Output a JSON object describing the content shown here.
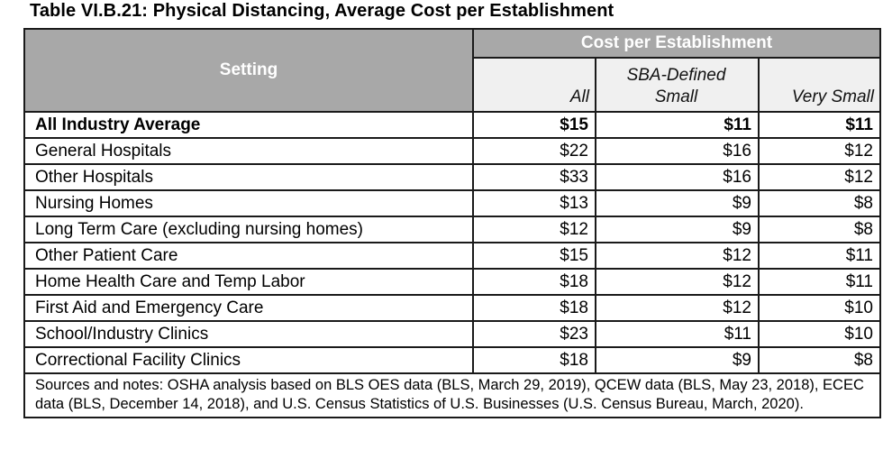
{
  "title": "Table VI.B.21: Physical Distancing, Average Cost per Establishment",
  "table": {
    "setting_header": "Setting",
    "group_header": "Cost per Establishment",
    "col_all": "All",
    "col_sba_line1": "SBA-Defined",
    "col_sba_line2": "Small",
    "col_very_small": "Very Small",
    "rows": [
      {
        "setting": "All Industry Average",
        "all": "$15",
        "sba": "$11",
        "very_small": "$11"
      },
      {
        "setting": "General Hospitals",
        "all": "$22",
        "sba": "$16",
        "very_small": "$12"
      },
      {
        "setting": "Other Hospitals",
        "all": "$33",
        "sba": "$16",
        "very_small": "$12"
      },
      {
        "setting": "Nursing Homes",
        "all": "$13",
        "sba": "$9",
        "very_small": "$8"
      },
      {
        "setting": "Long Term Care (excluding nursing homes)",
        "all": "$12",
        "sba": "$9",
        "very_small": "$8"
      },
      {
        "setting": "Other Patient Care",
        "all": "$15",
        "sba": "$12",
        "very_small": "$11"
      },
      {
        "setting": "Home Health Care and Temp Labor",
        "all": "$18",
        "sba": "$12",
        "very_small": "$11"
      },
      {
        "setting": "First Aid and Emergency Care",
        "all": "$18",
        "sba": "$12",
        "very_small": "$10"
      },
      {
        "setting": "School/Industry Clinics",
        "all": "$23",
        "sba": "$11",
        "very_small": "$10"
      },
      {
        "setting": "Correctional Facility Clinics",
        "all": "$18",
        "sba": "$9",
        "very_small": "$8"
      }
    ],
    "notes": "Sources and notes: OSHA analysis based on BLS OES data (BLS, March 29, 2019), QCEW data (BLS, May 23, 2018), ECEC data (BLS, December 14, 2018), and U.S. Census Statistics of U.S. Businesses (U.S. Census Bureau, March, 2020)."
  },
  "colors": {
    "header_background": "#a8a8a8",
    "subheader_background": "#f0f0f0",
    "border": "#1a1a1a"
  }
}
